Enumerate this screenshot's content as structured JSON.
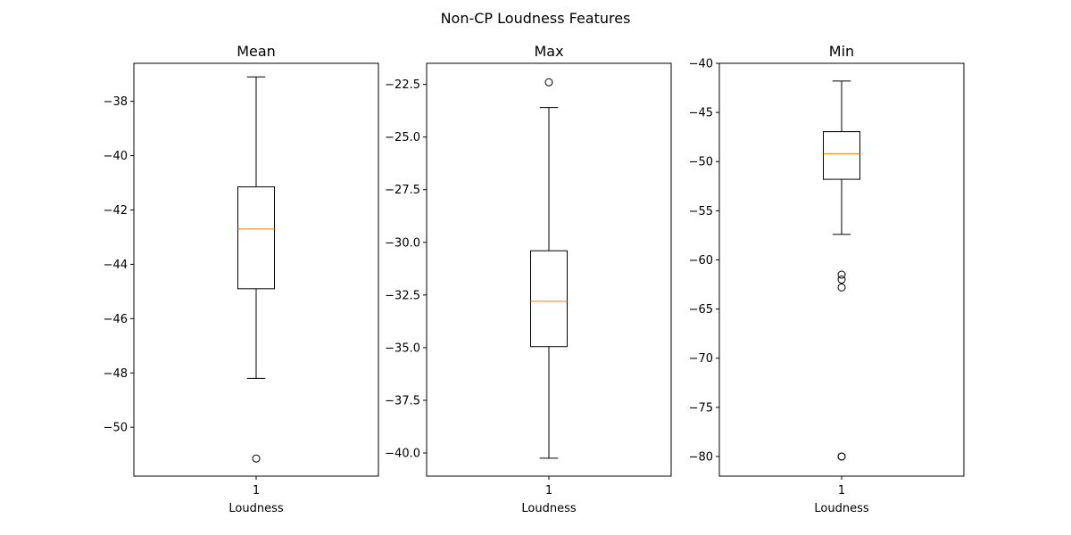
{
  "chart_data": {
    "type": "box",
    "title": "Non-CP Loudness Features",
    "colors": {
      "box": "#000000",
      "median": "#ff7f0e",
      "flier": "#000000",
      "background": "#ffffff"
    },
    "panels": [
      {
        "title": "Mean",
        "xlabel": "Loudness",
        "categories": [
          "1"
        ],
        "ylim": [
          -51.8,
          -36.6
        ],
        "yticks": [
          -50,
          -48,
          -46,
          -44,
          -42,
          -40,
          -38
        ],
        "ytick_labels": [
          "−50",
          "−48",
          "−46",
          "−44",
          "−42",
          "−40",
          "−38"
        ],
        "box": {
          "whisker_low": -48.2,
          "q1": -44.9,
          "median": -42.7,
          "q3": -41.15,
          "whisker_high": -37.1
        },
        "outliers": [
          -51.15
        ]
      },
      {
        "title": "Max",
        "xlabel": "Loudness",
        "categories": [
          "1"
        ],
        "ylim": [
          -41.1,
          -21.5
        ],
        "yticks": [
          -40.0,
          -37.5,
          -35.0,
          -32.5,
          -30.0,
          -27.5,
          -25.0,
          -22.5
        ],
        "ytick_labels": [
          "−40.0",
          "−37.5",
          "−35.0",
          "−32.5",
          "−30.0",
          "−27.5",
          "−25.0",
          "−22.5"
        ],
        "box": {
          "whisker_low": -40.25,
          "q1": -34.95,
          "median": -32.8,
          "q3": -30.4,
          "whisker_high": -23.6
        },
        "outliers": [
          -22.4
        ]
      },
      {
        "title": "Min",
        "xlabel": "Loudness",
        "categories": [
          "1"
        ],
        "ylim": [
          -82.0,
          -40.0
        ],
        "yticks": [
          -80,
          -75,
          -70,
          -65,
          -60,
          -55,
          -50,
          -45,
          -40
        ],
        "ytick_labels": [
          "−80",
          "−75",
          "−70",
          "−65",
          "−60",
          "−55",
          "−50",
          "−45",
          "−40"
        ],
        "box": {
          "whisker_low": -57.4,
          "q1": -51.8,
          "median": -49.2,
          "q3": -46.95,
          "whisker_high": -41.8
        },
        "outliers": [
          -61.5,
          -62.0,
          -62.8,
          -80.0,
          -80.0
        ]
      }
    ]
  }
}
